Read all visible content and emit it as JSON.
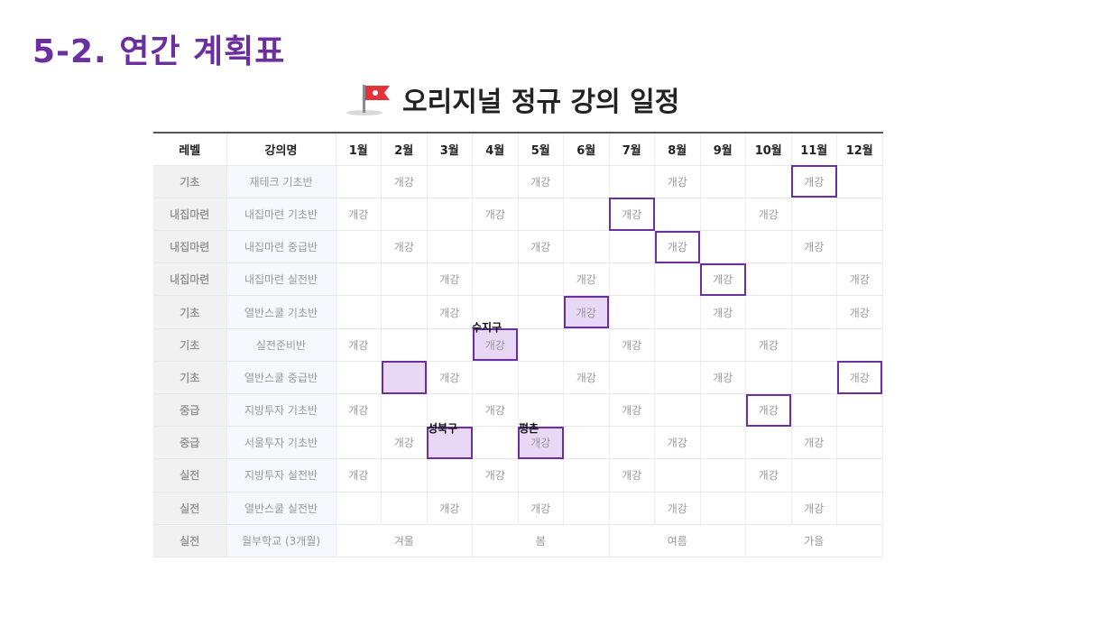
{
  "slide_title": "5-2. 연간 계획표",
  "schedule_title": "오리지널 정규 강의 일정",
  "header": {
    "level": "레벨",
    "course": "강의명",
    "months": [
      "1월",
      "2월",
      "3월",
      "4월",
      "5월",
      "6월",
      "7월",
      "8월",
      "9월",
      "10월",
      "11월",
      "12월"
    ]
  },
  "rows": [
    {
      "level": "기초",
      "course": "재테크 기초반",
      "cells": [
        "",
        "개강",
        "",
        "",
        "개강",
        "",
        "",
        "개강",
        "",
        "",
        "개강",
        ""
      ]
    },
    {
      "level": "내집마련",
      "course": "내집마련 기초반",
      "cells": [
        "개강",
        "",
        "",
        "개강",
        "",
        "",
        "개강",
        "",
        "",
        "개강",
        "",
        ""
      ]
    },
    {
      "level": "내집마련",
      "course": "내집마련 중급반",
      "cells": [
        "",
        "개강",
        "",
        "",
        "개강",
        "",
        "",
        "개강",
        "",
        "",
        "개강",
        ""
      ]
    },
    {
      "level": "내집마련",
      "course": "내집마련 실전반",
      "cells": [
        "",
        "",
        "개강",
        "",
        "",
        "개강",
        "",
        "",
        "개강",
        "",
        "",
        "개강"
      ]
    },
    {
      "level": "기초",
      "course": "열반스쿨 기초반",
      "cells": [
        "",
        "",
        "개강",
        "",
        "",
        "개강",
        "",
        "",
        "개강",
        "",
        "",
        "개강"
      ]
    },
    {
      "level": "기초",
      "course": "실전준비반",
      "cells": [
        "개강",
        "",
        "",
        "개강",
        "",
        "",
        "개강",
        "",
        "",
        "개강",
        "",
        ""
      ]
    },
    {
      "level": "기초",
      "course": "열반스쿨 중급반",
      "cells": [
        "",
        "",
        "개강",
        "",
        "",
        "개강",
        "",
        "",
        "개강",
        "",
        "",
        "개강"
      ]
    },
    {
      "level": "중급",
      "course": "지방투자 기초반",
      "cells": [
        "개강",
        "",
        "",
        "개강",
        "",
        "",
        "개강",
        "",
        "",
        "개강",
        "",
        ""
      ]
    },
    {
      "level": "중급",
      "course": "서울투자 기초반",
      "cells": [
        "",
        "개강",
        "",
        "",
        "개강",
        "",
        "",
        "개강",
        "",
        "",
        "개강",
        ""
      ]
    },
    {
      "level": "실전",
      "course": "지방투자 실전반",
      "cells": [
        "개강",
        "",
        "",
        "개강",
        "",
        "",
        "개강",
        "",
        "",
        "개강",
        "",
        ""
      ]
    },
    {
      "level": "실전",
      "course": "열반스쿨 실전반",
      "cells": [
        "",
        "",
        "개강",
        "",
        "개강",
        "",
        "",
        "개강",
        "",
        "",
        "개강",
        ""
      ]
    }
  ],
  "last_row": {
    "level": "실전",
    "course": "월부학교 (3개월)",
    "seasons": [
      "겨울",
      "봄",
      "여름",
      "가을"
    ]
  },
  "annotations": {
    "suji": "수지구",
    "seongbuk": "성북구",
    "pyeongchon": "평촌"
  },
  "colors": {
    "accent": "#6b2fa0",
    "highlight_fill": "#e8d8f5",
    "header_blue": "#3a6fd0"
  }
}
